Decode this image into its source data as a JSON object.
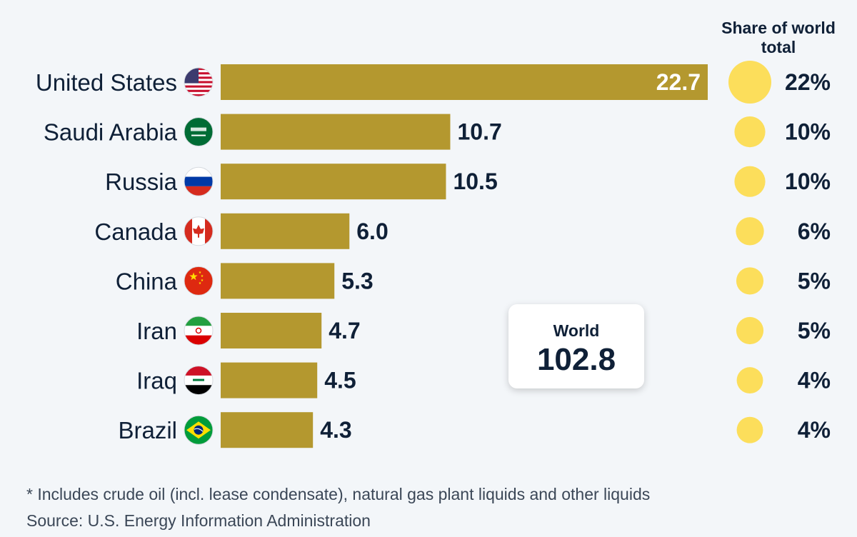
{
  "chart_data": {
    "type": "bar",
    "orientation": "horizontal",
    "categories": [
      "United States",
      "Saudi Arabia",
      "Russia",
      "Canada",
      "China",
      "Iran",
      "Iraq",
      "Brazil"
    ],
    "values": [
      22.7,
      10.7,
      10.5,
      6.0,
      5.3,
      4.7,
      4.5,
      4.3
    ],
    "value_labels": [
      "22.7",
      "10.7",
      "10.5",
      "6.0",
      "5.3",
      "4.7",
      "4.5",
      "4.3"
    ],
    "share_of_world": [
      22,
      10,
      10,
      6,
      5,
      5,
      4,
      4
    ],
    "share_labels": [
      "22%",
      "10%",
      "10%",
      "6%",
      "5%",
      "5%",
      "4%",
      "4%"
    ],
    "xlim": [
      0,
      22.7
    ],
    "grid": false,
    "bar_color": "#b4982f",
    "share_dot_color": "#fcde5b",
    "text_color": "#0f2037",
    "flags": [
      "us-flag-icon",
      "saudi-arabia-flag-icon",
      "russia-flag-icon",
      "canada-flag-icon",
      "china-flag-icon",
      "iran-flag-icon",
      "iraq-flag-icon",
      "brazil-flag-icon"
    ]
  },
  "share_header": "Share of world total",
  "world": {
    "label": "World",
    "value": "102.8"
  },
  "footnote": "* Includes crude oil (incl. lease condensate), natural gas plant liquids and other liquids",
  "source": "Source: U.S. Energy Information Administration"
}
